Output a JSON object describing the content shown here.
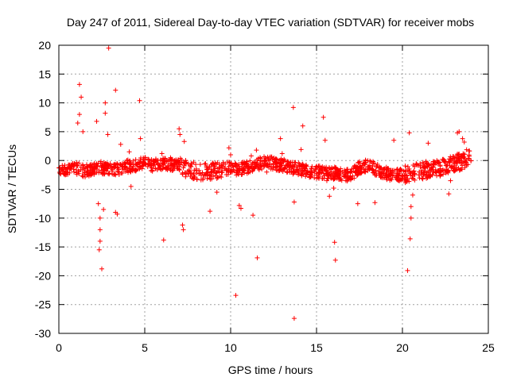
{
  "chart_data": {
    "type": "scatter",
    "title": "Day 247 of 2011, Sidereal Day-to-day VTEC variation (SDTVAR) for receiver mobs",
    "xlabel": "GPS time / hours",
    "ylabel": "SDTVAR / TECUs",
    "xlim": [
      0,
      25
    ],
    "ylim": [
      -30,
      20
    ],
    "xticks": [
      0,
      5,
      10,
      15,
      20,
      25
    ],
    "yticks": [
      20,
      15,
      10,
      5,
      0,
      -5,
      -10,
      -15,
      -20,
      -25,
      -30
    ],
    "xtick_labels": [
      "0",
      "5",
      "10",
      "15",
      "20",
      "25"
    ],
    "ytick_labels": [
      "20",
      "15",
      "10",
      "5",
      "0",
      "-5",
      "-10",
      "-15",
      "-20",
      "-25",
      "-30"
    ],
    "grid": true,
    "marker": "+",
    "color": "#ff0000",
    "baseline_trace": [
      [
        0.0,
        -1.2
      ],
      [
        0.5,
        -1.6
      ],
      [
        1.0,
        -1.4
      ],
      [
        1.5,
        -1.8
      ],
      [
        2.0,
        -1.5
      ],
      [
        2.5,
        -1.2
      ],
      [
        3.0,
        -1.6
      ],
      [
        3.5,
        -1.4
      ],
      [
        4.0,
        -1.0
      ],
      [
        4.5,
        -0.8
      ],
      [
        5.0,
        -0.5
      ],
      [
        5.5,
        -0.8
      ],
      [
        6.0,
        -0.6
      ],
      [
        6.5,
        -0.8
      ],
      [
        7.0,
        -0.9
      ],
      [
        7.5,
        -1.5
      ],
      [
        8.0,
        -1.8
      ],
      [
        8.5,
        -2.0
      ],
      [
        9.0,
        -1.8
      ],
      [
        9.5,
        -1.7
      ],
      [
        10.0,
        -1.4
      ],
      [
        10.5,
        -1.5
      ],
      [
        11.0,
        -1.2
      ],
      [
        11.5,
        -0.6
      ],
      [
        12.0,
        -0.4
      ],
      [
        12.5,
        -0.5
      ],
      [
        13.0,
        -0.8
      ],
      [
        13.5,
        -1.2
      ],
      [
        14.0,
        -1.5
      ],
      [
        14.5,
        -1.8
      ],
      [
        15.0,
        -2.0
      ],
      [
        15.5,
        -2.1
      ],
      [
        16.0,
        -2.2
      ],
      [
        16.5,
        -2.4
      ],
      [
        17.0,
        -2.6
      ],
      [
        17.5,
        -1.2
      ],
      [
        18.0,
        -0.8
      ],
      [
        18.5,
        -1.6
      ],
      [
        19.0,
        -2.2
      ],
      [
        19.5,
        -2.6
      ],
      [
        20.0,
        -2.5
      ],
      [
        20.5,
        -2.2
      ],
      [
        21.0,
        -1.8
      ],
      [
        21.5,
        -1.6
      ],
      [
        22.0,
        -1.4
      ],
      [
        22.5,
        -1.0
      ],
      [
        23.0,
        -0.6
      ],
      [
        23.5,
        0.0
      ],
      [
        24.0,
        1.0
      ]
    ],
    "spikes": [
      [
        1.2,
        13.2
      ],
      [
        1.3,
        11.0
      ],
      [
        1.2,
        8.0
      ],
      [
        1.1,
        6.5
      ],
      [
        1.4,
        5.0
      ],
      [
        2.2,
        6.8
      ],
      [
        2.3,
        -7.5
      ],
      [
        2.4,
        -10.0
      ],
      [
        2.4,
        -12.0
      ],
      [
        2.4,
        -14.0
      ],
      [
        2.35,
        -15.5
      ],
      [
        2.5,
        -18.8
      ],
      [
        2.6,
        -8.5
      ],
      [
        2.7,
        10.0
      ],
      [
        2.7,
        8.2
      ],
      [
        2.9,
        19.5
      ],
      [
        2.85,
        4.5
      ],
      [
        3.3,
        12.2
      ],
      [
        3.3,
        -9.0
      ],
      [
        3.4,
        -9.3
      ],
      [
        3.6,
        2.8
      ],
      [
        4.1,
        1.5
      ],
      [
        4.2,
        -4.5
      ],
      [
        4.7,
        10.4
      ],
      [
        4.75,
        3.8
      ],
      [
        6.0,
        1.2
      ],
      [
        6.1,
        -13.8
      ],
      [
        6.5,
        0.5
      ],
      [
        7.0,
        5.5
      ],
      [
        7.05,
        4.5
      ],
      [
        7.2,
        -11.2
      ],
      [
        7.25,
        -12.0
      ],
      [
        7.3,
        3.3
      ],
      [
        8.8,
        -8.8
      ],
      [
        9.2,
        -5.5
      ],
      [
        9.9,
        2.2
      ],
      [
        10.0,
        1.0
      ],
      [
        10.3,
        -23.4
      ],
      [
        10.5,
        -7.8
      ],
      [
        10.6,
        -8.3
      ],
      [
        11.2,
        0.8
      ],
      [
        11.5,
        1.8
      ],
      [
        11.55,
        -16.9
      ],
      [
        11.3,
        -9.5
      ],
      [
        12.1,
        -2.0
      ],
      [
        12.9,
        3.8
      ],
      [
        13.0,
        1.2
      ],
      [
        13.65,
        9.2
      ],
      [
        13.7,
        -7.2
      ],
      [
        13.7,
        -27.4
      ],
      [
        14.2,
        6.0
      ],
      [
        14.1,
        1.9
      ],
      [
        15.4,
        7.5
      ],
      [
        15.5,
        3.5
      ],
      [
        15.6,
        -3.5
      ],
      [
        15.75,
        -6.2
      ],
      [
        16.0,
        -4.8
      ],
      [
        16.05,
        -14.2
      ],
      [
        16.1,
        -17.3
      ],
      [
        17.4,
        -7.5
      ],
      [
        17.8,
        -0.5
      ],
      [
        18.4,
        -7.3
      ],
      [
        18.5,
        -2.5
      ],
      [
        19.5,
        3.5
      ],
      [
        20.3,
        -19.1
      ],
      [
        20.4,
        4.8
      ],
      [
        20.45,
        -13.6
      ],
      [
        20.5,
        -10.0
      ],
      [
        20.5,
        -8.0
      ],
      [
        20.6,
        -6.0
      ],
      [
        21.5,
        3.0
      ],
      [
        21.4,
        -2.5
      ],
      [
        22.7,
        -5.8
      ],
      [
        22.8,
        -3.5
      ],
      [
        23.2,
        4.8
      ],
      [
        23.3,
        5.0
      ],
      [
        23.5,
        3.8
      ],
      [
        23.6,
        3.2
      ]
    ]
  }
}
